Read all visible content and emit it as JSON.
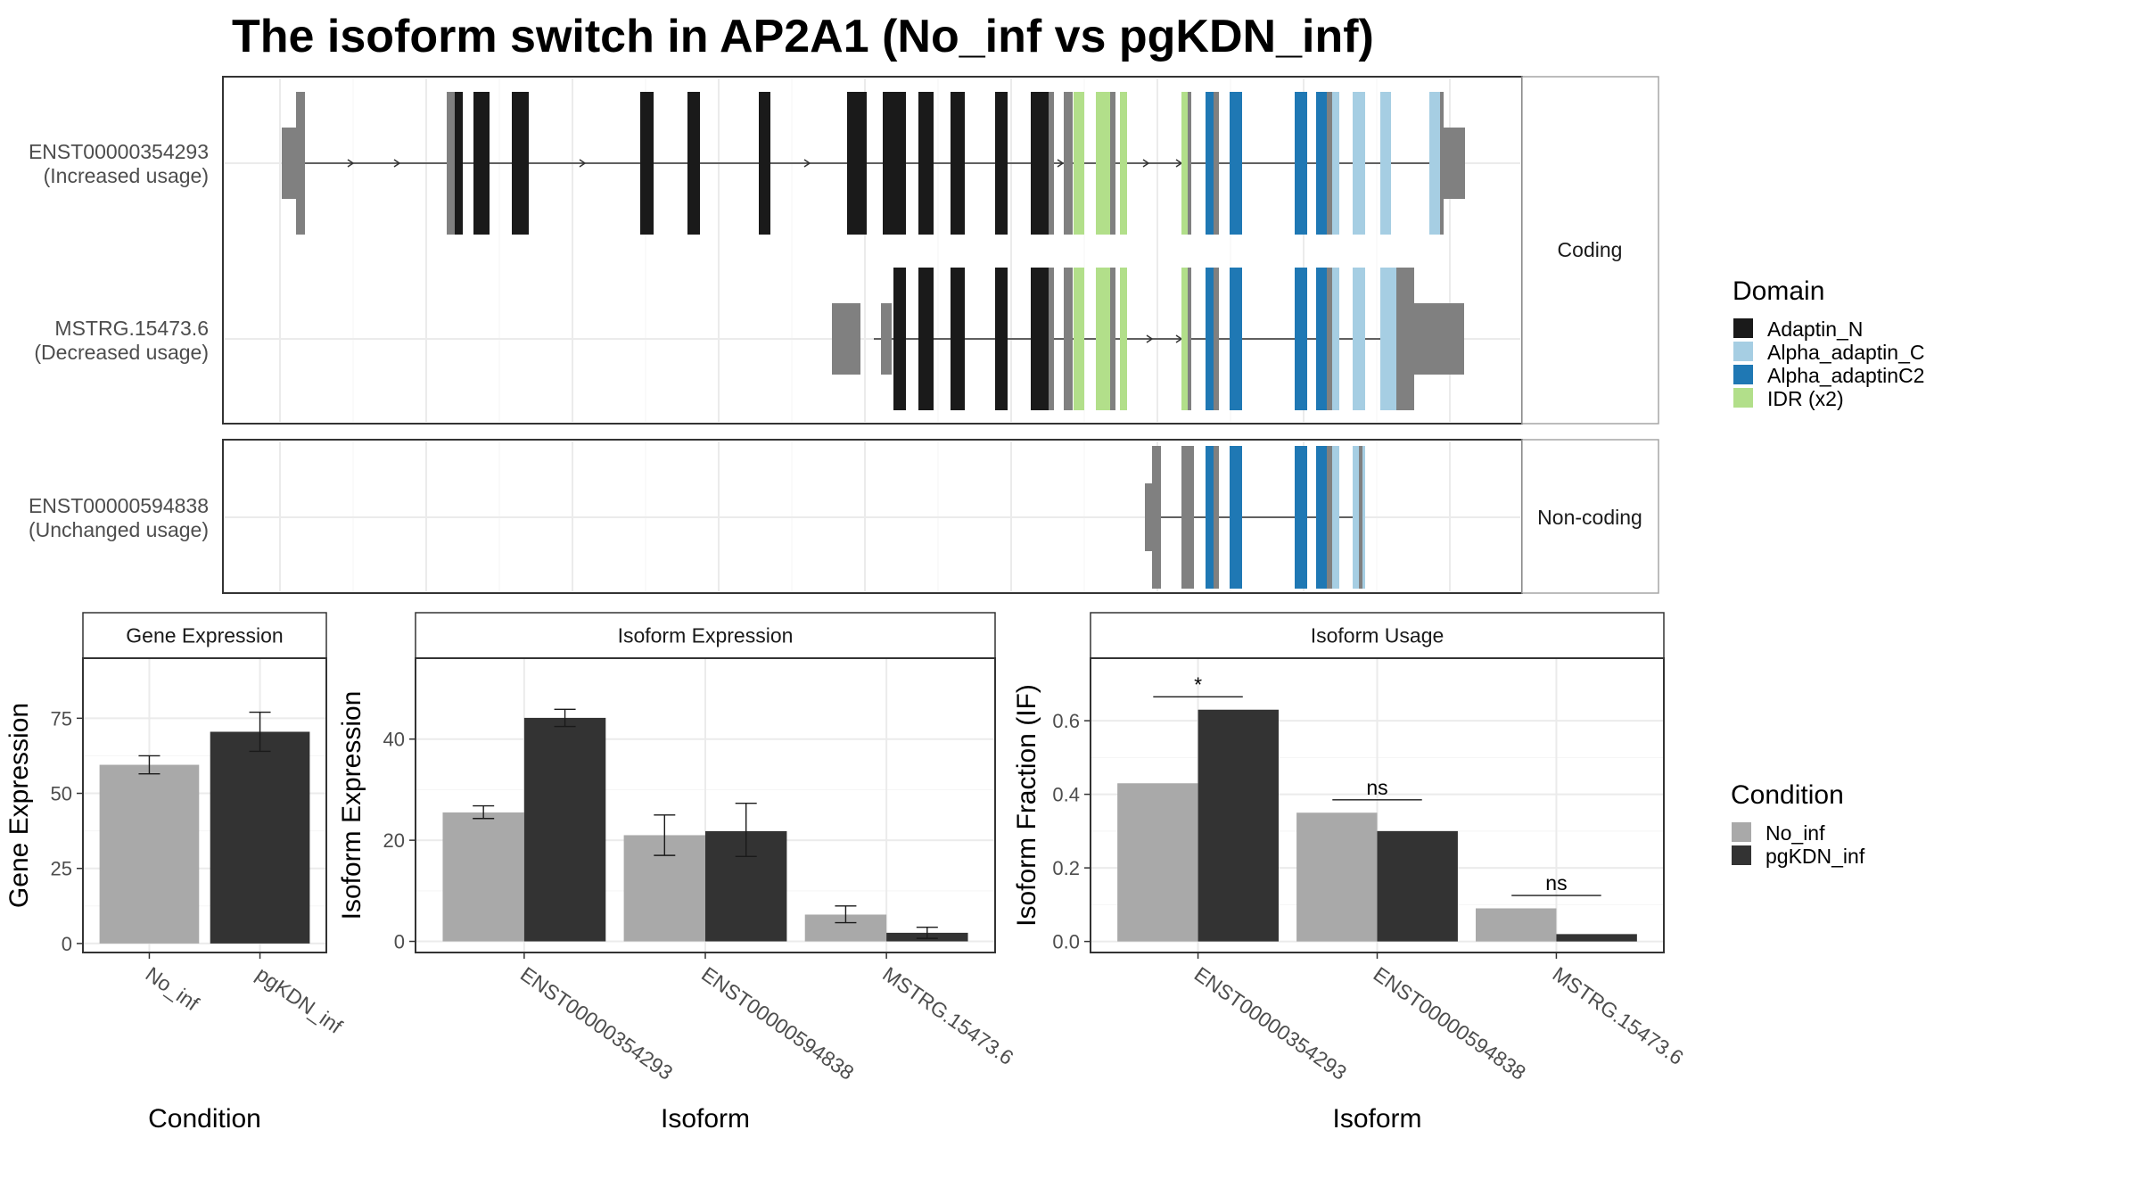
{
  "title": "The isoform switch in AP2A1 (No_inf vs pgKDN_inf)",
  "structure": {
    "panels": [
      {
        "label": "Coding",
        "isoforms": [
          {
            "id": "ENST00000354293",
            "usage": "(Increased usage)"
          },
          {
            "id": "MSTRG.15473.6",
            "usage": "(Decreased usage)"
          }
        ]
      },
      {
        "label": "Non-coding",
        "isoforms": [
          {
            "id": "ENST00000594838",
            "usage": "(Unchanged usage)"
          }
        ]
      }
    ]
  },
  "domain_legend": {
    "title": "Domain",
    "items": [
      {
        "label": "Adaptin_N",
        "color": "#1a1a1a"
      },
      {
        "label": "Alpha_adaptin_C",
        "color": "#a6cee3"
      },
      {
        "label": "Alpha_adaptinC2",
        "color": "#1f78b4"
      },
      {
        "label": "IDR (x2)",
        "color": "#b2df8a"
      }
    ]
  },
  "condition_legend": {
    "title": "Condition",
    "items": [
      {
        "label": "No_inf",
        "color": "#a9a9a9"
      },
      {
        "label": "pgKDN_inf",
        "color": "#333333"
      }
    ]
  },
  "chart_data": [
    {
      "type": "bar",
      "title": "Gene Expression",
      "xlabel": "Condition",
      "ylabel": "Gene Expression",
      "categories": [
        "No_inf",
        "pgKDN_inf"
      ],
      "values": [
        59.5,
        70.5
      ],
      "errors": [
        [
          56.5,
          62.5
        ],
        [
          64,
          77
        ]
      ],
      "colors": [
        "#a9a9a9",
        "#333333"
      ],
      "ylim": [
        -3,
        95
      ],
      "yticks": [
        0,
        25,
        50,
        75
      ]
    },
    {
      "type": "bar",
      "title": "Isoform Expression",
      "xlabel": "Isoform",
      "ylabel": "Isoform Expression",
      "categories": [
        "ENST00000354293",
        "ENST00000594838",
        "MSTRG.15473.6"
      ],
      "series": [
        {
          "name": "No_inf",
          "color": "#a9a9a9",
          "values": [
            25.5,
            21.0,
            5.3
          ],
          "errors": [
            [
              24.3,
              26.8
            ],
            [
              17.0,
              25.0
            ],
            [
              3.7,
              7.0
            ]
          ]
        },
        {
          "name": "pgKDN_inf",
          "color": "#333333",
          "values": [
            44.2,
            21.8,
            1.7
          ],
          "errors": [
            [
              42.5,
              45.9
            ],
            [
              16.8,
              27.3
            ],
            [
              0.6,
              2.8
            ]
          ]
        }
      ],
      "ylim": [
        -2.2,
        56
      ],
      "yticks": [
        0,
        20,
        40
      ]
    },
    {
      "type": "bar",
      "title": "Isoform Usage",
      "xlabel": "Isoform",
      "ylabel": "Isoform Fraction (IF)",
      "categories": [
        "ENST00000354293",
        "ENST00000594838",
        "MSTRG.15473.6"
      ],
      "series": [
        {
          "name": "No_inf",
          "color": "#a9a9a9",
          "values": [
            0.43,
            0.35,
            0.09
          ]
        },
        {
          "name": "pgKDN_inf",
          "color": "#333333",
          "values": [
            0.63,
            0.3,
            0.02
          ]
        }
      ],
      "significance": [
        "*",
        "ns",
        "ns"
      ],
      "sig_heights": [
        0.665,
        0.385,
        0.125
      ],
      "ylim": [
        -0.03,
        0.77
      ],
      "yticks": [
        0.0,
        0.2,
        0.4,
        0.6
      ],
      "ytick_labels": [
        "0.0",
        "0.2",
        "0.4",
        "0.6"
      ]
    }
  ]
}
